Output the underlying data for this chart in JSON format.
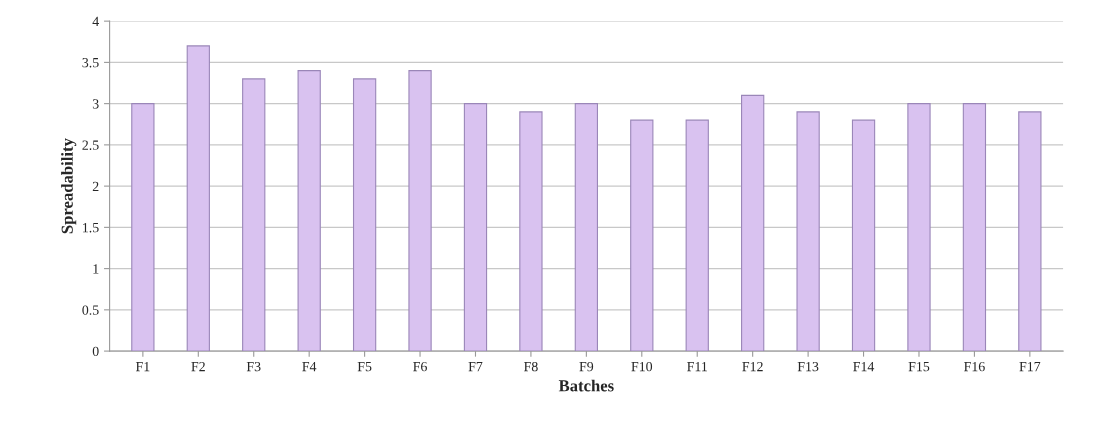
{
  "chart_data": {
    "type": "bar",
    "xlabel": "Batches",
    "ylabel": "Spreadability",
    "categories": [
      "F1",
      "F2",
      "F3",
      "F4",
      "F5",
      "F6",
      "F7",
      "F8",
      "F9",
      "F10",
      "F11",
      "F12",
      "F13",
      "F14",
      "F15",
      "F16",
      "F17"
    ],
    "values": [
      3.0,
      3.7,
      3.3,
      3.4,
      3.3,
      3.4,
      3.0,
      2.9,
      3.0,
      2.8,
      2.8,
      3.1,
      2.9,
      2.8,
      3.0,
      3.0,
      2.9
    ],
    "color": "#d9c2f0",
    "ylim": [
      0,
      4
    ],
    "yticks": [
      0,
      0.5,
      1,
      1.5,
      2,
      2.5,
      3,
      3.5,
      4
    ],
    "grid": "y"
  }
}
